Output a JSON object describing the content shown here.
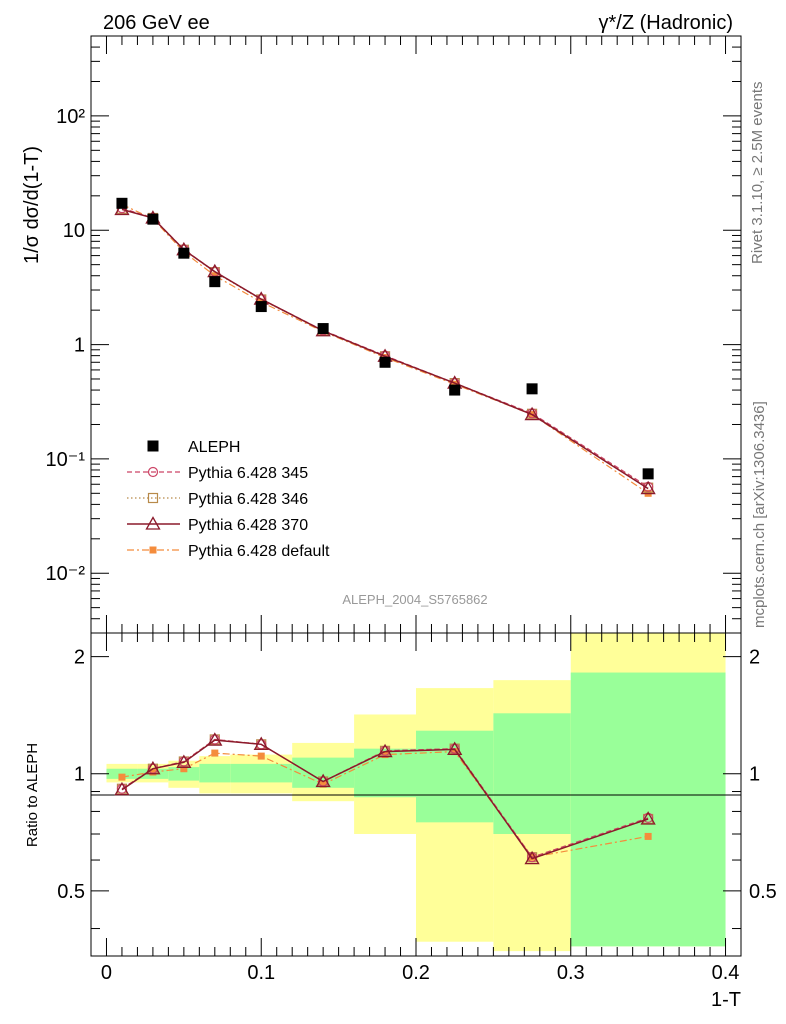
{
  "header": {
    "left_label": "206 GeV ee",
    "right_label": "γ*/Z (Hadronic)"
  },
  "side_labels": {
    "rivet": "Rivet 3.1.10, ≥ 2.5M events",
    "mcplots": "mcplots.cern.ch [arXiv:1306.3436]"
  },
  "colors": {
    "data": "#000000",
    "p345": "#cc4466",
    "p346": "#b88a4a",
    "p370": "#8b1a2b",
    "pdefault": "#f48c3c",
    "band_inner": "#99ff99",
    "band_outer": "#ffff99"
  },
  "chart_data": [
    {
      "id": "main",
      "type": "line",
      "title": "",
      "analysis_label": "ALEPH_2004_S5765862",
      "xlabel": "1-T",
      "ylabel": "1/σ  dσ/d(1-T)",
      "yscale": "log",
      "xlim": [
        -0.01,
        0.41
      ],
      "ylim": [
        0.003,
        500
      ],
      "ytick_labels": [
        "10⁻²",
        "10⁻¹",
        "1",
        "10",
        "10²"
      ],
      "x": [
        0.01,
        0.03,
        0.05,
        0.07,
        0.1,
        0.14,
        0.18,
        0.225,
        0.275,
        0.35
      ],
      "legend_position": "bottom-left",
      "series": [
        {
          "key": "data",
          "name": "ALEPH",
          "style": "points",
          "values": [
            17.2,
            12.5,
            6.3,
            3.55,
            2.15,
            1.38,
            0.7,
            0.4,
            0.41,
            0.074
          ]
        },
        {
          "key": "p345",
          "name": "Pythia 6.428 345",
          "style": "dashed-circle",
          "values": [
            15.6,
            12.8,
            6.8,
            4.35,
            2.5,
            1.33,
            0.8,
            0.46,
            0.25,
            0.057
          ]
        },
        {
          "key": "p346",
          "name": "Pythia 6.428 346",
          "style": "dotted-square",
          "values": [
            15.4,
            12.8,
            6.75,
            4.3,
            2.48,
            1.32,
            0.79,
            0.46,
            0.248,
            0.056
          ]
        },
        {
          "key": "p370",
          "name": "Pythia 6.428 370",
          "style": "solid-triangle",
          "values": [
            15.2,
            12.8,
            6.75,
            4.35,
            2.5,
            1.32,
            0.79,
            0.46,
            0.244,
            0.055
          ]
        },
        {
          "key": "pdefault",
          "name": "Pythia 6.428 default",
          "style": "dashdot-filledsquare",
          "values": [
            16.8,
            12.6,
            6.45,
            4.0,
            2.35,
            1.3,
            0.77,
            0.45,
            0.244,
            0.05
          ]
        }
      ]
    },
    {
      "id": "ratio",
      "type": "line",
      "ylabel": "Ratio to ALEPH",
      "xlabel": "1-T",
      "xlim": [
        -0.01,
        0.41
      ],
      "ylim": [
        0.34,
        2.3
      ],
      "yscale": "log",
      "yticks": [
        0.5,
        1,
        2
      ],
      "ytick_labels": [
        "0.5",
        "1",
        "2"
      ],
      "xticks": [
        0,
        0.1,
        0.2,
        0.3,
        0.4
      ],
      "xtick_labels": [
        "0",
        "0.1",
        "0.2",
        "0.3",
        "0.4"
      ],
      "x": [
        0.01,
        0.03,
        0.05,
        0.07,
        0.1,
        0.14,
        0.18,
        0.225,
        0.275,
        0.35
      ],
      "bin_edges": [
        0,
        0.02,
        0.04,
        0.06,
        0.08,
        0.12,
        0.16,
        0.2,
        0.25,
        0.3,
        0.4
      ],
      "band_inner": [
        [
          0.97,
          1.03
        ],
        [
          0.97,
          1.03
        ],
        [
          0.96,
          1.04
        ],
        [
          0.95,
          1.06
        ],
        [
          0.95,
          1.06
        ],
        [
          0.92,
          1.1
        ],
        [
          0.87,
          1.16
        ],
        [
          0.75,
          1.29
        ],
        [
          0.7,
          1.43
        ],
        [
          0.36,
          1.82
        ]
      ],
      "band_outer": [
        [
          0.95,
          1.06
        ],
        [
          0.95,
          1.06
        ],
        [
          0.92,
          1.08
        ],
        [
          0.89,
          1.11
        ],
        [
          0.89,
          1.12
        ],
        [
          0.85,
          1.2
        ],
        [
          0.7,
          1.42
        ],
        [
          0.37,
          1.66
        ],
        [
          0.35,
          1.74
        ],
        [
          0.36,
          2.3
        ]
      ],
      "series": [
        {
          "key": "p345",
          "name": "Pythia 6.428 345",
          "style": "dashed-circle",
          "values": [
            0.915,
            1.03,
            1.075,
            1.225,
            1.19,
            0.955,
            1.145,
            1.16,
            0.61,
            0.77
          ]
        },
        {
          "key": "p346",
          "name": "Pythia 6.428 346",
          "style": "dotted-square",
          "values": [
            0.915,
            1.03,
            1.075,
            1.225,
            1.19,
            0.955,
            1.145,
            1.16,
            0.61,
            0.765
          ]
        },
        {
          "key": "p370",
          "name": "Pythia 6.428 370",
          "style": "solid-triangle",
          "values": [
            0.91,
            1.03,
            1.07,
            1.22,
            1.19,
            0.955,
            1.14,
            1.155,
            0.605,
            0.765
          ]
        },
        {
          "key": "pdefault",
          "name": "Pythia 6.428 default",
          "style": "dashdot-filledsquare",
          "values": [
            0.98,
            1.01,
            1.03,
            1.13,
            1.11,
            0.94,
            1.12,
            1.14,
            0.61,
            0.69
          ]
        }
      ]
    }
  ]
}
